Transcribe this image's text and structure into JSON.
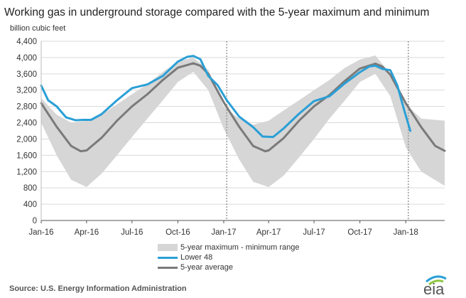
{
  "header": {
    "title": "Working gas in underground  storage compared with the 5-year maximum and minimum",
    "unit": "billion cubic feet"
  },
  "chart_data": {
    "type": "line",
    "xlim": [
      "2016-01-01",
      "2018-03-20"
    ],
    "ylim": [
      0,
      4400
    ],
    "y_ticks": [
      0,
      400,
      800,
      1200,
      1600,
      2000,
      2400,
      2800,
      3200,
      3600,
      4000,
      4400
    ],
    "x_ticks": [
      {
        "date": "2016-01-01",
        "label": "Jan-16"
      },
      {
        "date": "2016-04-01",
        "label": "Apr-16"
      },
      {
        "date": "2016-07-01",
        "label": "Jul-16"
      },
      {
        "date": "2016-10-01",
        "label": "Oct-16"
      },
      {
        "date": "2017-01-01",
        "label": "Jan-17"
      },
      {
        "date": "2017-04-01",
        "label": "Apr-17"
      },
      {
        "date": "2017-07-01",
        "label": "Jul-17"
      },
      {
        "date": "2017-10-01",
        "label": "Oct-17"
      },
      {
        "date": "2018-01-01",
        "label": "Jan-18"
      }
    ],
    "year_dividers": [
      "2017-01-07",
      "2018-01-06"
    ],
    "grid": true,
    "legend_position": "bottom",
    "band": {
      "name": "5-year maximum - minimum range",
      "color": "#d6d6d6",
      "x": [
        "2016-01-01",
        "2016-02-01",
        "2016-03-01",
        "2016-04-01",
        "2016-05-01",
        "2016-06-01",
        "2016-07-01",
        "2016-08-01",
        "2016-09-01",
        "2016-10-01",
        "2016-11-01",
        "2016-12-01",
        "2017-01-01",
        "2017-02-01",
        "2017-03-01",
        "2017-04-01",
        "2017-05-01",
        "2017-06-01",
        "2017-07-01",
        "2017-08-01",
        "2017-09-01",
        "2017-10-01",
        "2017-11-01",
        "2017-12-01",
        "2018-01-01",
        "2018-02-01",
        "2018-03-20"
      ],
      "max": [
        3000,
        2600,
        2400,
        2450,
        2600,
        2850,
        3100,
        3350,
        3650,
        3900,
        4000,
        3700,
        2800,
        2500,
        2350,
        2450,
        2700,
        2950,
        3200,
        3450,
        3750,
        3950,
        4050,
        3600,
        2850,
        2500,
        2450
      ],
      "min": [
        2400,
        1600,
        1000,
        820,
        1150,
        1600,
        2050,
        2500,
        2950,
        3400,
        3650,
        3200,
        2250,
        1500,
        950,
        820,
        1100,
        1550,
        2000,
        2500,
        2950,
        3400,
        3600,
        3050,
        1800,
        1200,
        850
      ]
    },
    "series": [
      {
        "name": "Lower 48",
        "color": "#2a9fd6",
        "x": [
          "2016-01-01",
          "2016-01-15",
          "2016-02-01",
          "2016-02-20",
          "2016-03-10",
          "2016-03-25",
          "2016-04-10",
          "2016-05-01",
          "2016-06-01",
          "2016-07-01",
          "2016-08-01",
          "2016-09-01",
          "2016-10-01",
          "2016-10-20",
          "2016-11-01",
          "2016-11-15",
          "2016-12-01",
          "2016-12-20",
          "2017-01-07",
          "2017-02-01",
          "2017-03-01",
          "2017-03-20",
          "2017-04-10",
          "2017-05-01",
          "2017-06-01",
          "2017-07-01",
          "2017-08-01",
          "2017-09-01",
          "2017-10-01",
          "2017-10-20",
          "2017-11-01",
          "2017-11-15",
          "2017-12-01",
          "2017-12-15",
          "2017-12-29",
          "2018-01-10"
        ],
        "values": [
          3310,
          2950,
          2800,
          2530,
          2460,
          2470,
          2470,
          2610,
          2950,
          3250,
          3340,
          3550,
          3900,
          4020,
          4040,
          3960,
          3550,
          3320,
          2950,
          2550,
          2290,
          2060,
          2050,
          2260,
          2620,
          2930,
          3050,
          3370,
          3640,
          3780,
          3800,
          3720,
          3690,
          3320,
          2700,
          2200
        ]
      },
      {
        "name": "5-year average",
        "color": "#7a7a7a",
        "x": [
          "2016-01-01",
          "2016-02-01",
          "2016-03-01",
          "2016-03-20",
          "2016-04-01",
          "2016-05-01",
          "2016-06-01",
          "2016-07-01",
          "2016-08-01",
          "2016-09-01",
          "2016-10-01",
          "2016-11-01",
          "2016-11-15",
          "2016-12-01",
          "2017-01-01",
          "2017-02-01",
          "2017-03-01",
          "2017-03-25",
          "2017-04-01",
          "2017-05-01",
          "2017-06-01",
          "2017-07-01",
          "2017-08-01",
          "2017-09-01",
          "2017-10-01",
          "2017-11-01",
          "2017-11-15",
          "2017-12-01",
          "2018-01-01",
          "2018-02-01",
          "2018-03-01",
          "2018-03-20"
        ],
        "values": [
          2880,
          2300,
          1830,
          1700,
          1720,
          2030,
          2450,
          2800,
          3100,
          3450,
          3750,
          3860,
          3800,
          3600,
          2900,
          2300,
          1830,
          1700,
          1720,
          2020,
          2450,
          2800,
          3080,
          3430,
          3730,
          3850,
          3780,
          3580,
          2880,
          2290,
          1830,
          1710
        ]
      }
    ]
  },
  "footer": {
    "source": "Source:  U.S. Energy Information Administration",
    "logo_text": "eia"
  }
}
